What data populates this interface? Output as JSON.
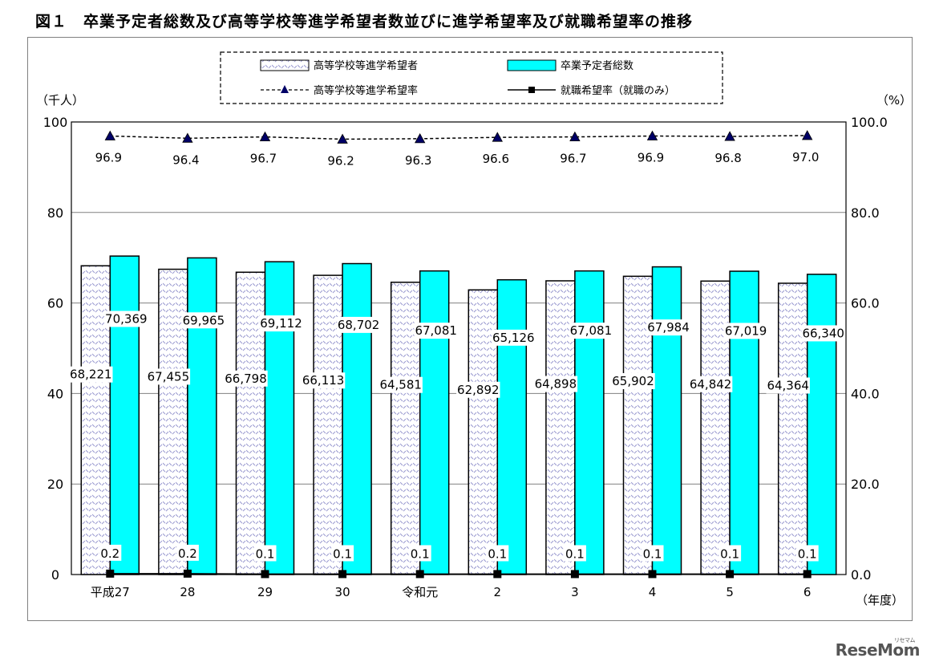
{
  "title": "図１　卒業予定者総数及び高等学校等進学希望者数並びに進学希望率及び就職希望率の推移",
  "watermark": "ReseMom",
  "watermark_small": "リセマム",
  "chart_data": {
    "type": "bar",
    "categories": [
      "平成27",
      "28",
      "29",
      "30",
      "令和元",
      "2",
      "3",
      "4",
      "5",
      "6"
    ],
    "x_unit": "（年度）",
    "left_axis": {
      "unit": "（千人）",
      "ylim": [
        0,
        100
      ],
      "ticks": [
        "0",
        "20",
        "40",
        "60",
        "80",
        "100"
      ]
    },
    "right_axis": {
      "unit": "（%）",
      "ylim": [
        0,
        100
      ],
      "ticks": [
        "0.0",
        "20.0",
        "40.0",
        "60.0",
        "80.0",
        "100.0"
      ]
    },
    "grid": true,
    "legend_position": "top-center",
    "bar_series": [
      {
        "name": "高等学校等進学希望者",
        "axis": "left",
        "values": [
          68221,
          67455,
          66798,
          66113,
          64581,
          62892,
          64898,
          65902,
          64842,
          64364
        ],
        "labels": [
          "68,221",
          "67,455",
          "66,798",
          "66,113",
          "64,581",
          "62,892",
          "64,898",
          "65,902",
          "64,842",
          "64,364"
        ],
        "pattern": "hatched",
        "color": "#9a9ad0"
      },
      {
        "name": "卒業予定者総数",
        "axis": "left",
        "values": [
          70369,
          69965,
          69112,
          68702,
          67081,
          65126,
          67081,
          67984,
          67019,
          66340
        ],
        "labels": [
          "70,369",
          "69,965",
          "69,112",
          "68,702",
          "67,081",
          "65,126",
          "67,081",
          "67,984",
          "67,019",
          "66,340"
        ],
        "color": "#00ffff"
      }
    ],
    "line_series": [
      {
        "name": "高等学校等進学希望率",
        "axis": "right",
        "values": [
          96.9,
          96.4,
          96.7,
          96.2,
          96.3,
          96.6,
          96.7,
          96.9,
          96.8,
          97.0
        ],
        "labels": [
          "96.9",
          "96.4",
          "96.7",
          "96.2",
          "96.3",
          "96.6",
          "96.7",
          "96.9",
          "96.8",
          "97.0"
        ],
        "marker": "triangle",
        "line_style": "dashed",
        "color": "#000066"
      },
      {
        "name": "就職希望率（就職のみ）",
        "axis": "right",
        "values": [
          0.2,
          0.2,
          0.1,
          0.1,
          0.1,
          0.1,
          0.1,
          0.1,
          0.1,
          0.1
        ],
        "labels": [
          "0.2",
          "0.2",
          "0.1",
          "0.1",
          "0.1",
          "0.1",
          "0.1",
          "0.1",
          "0.1",
          "0.1"
        ],
        "marker": "square",
        "line_style": "solid",
        "color": "#000000"
      }
    ]
  }
}
